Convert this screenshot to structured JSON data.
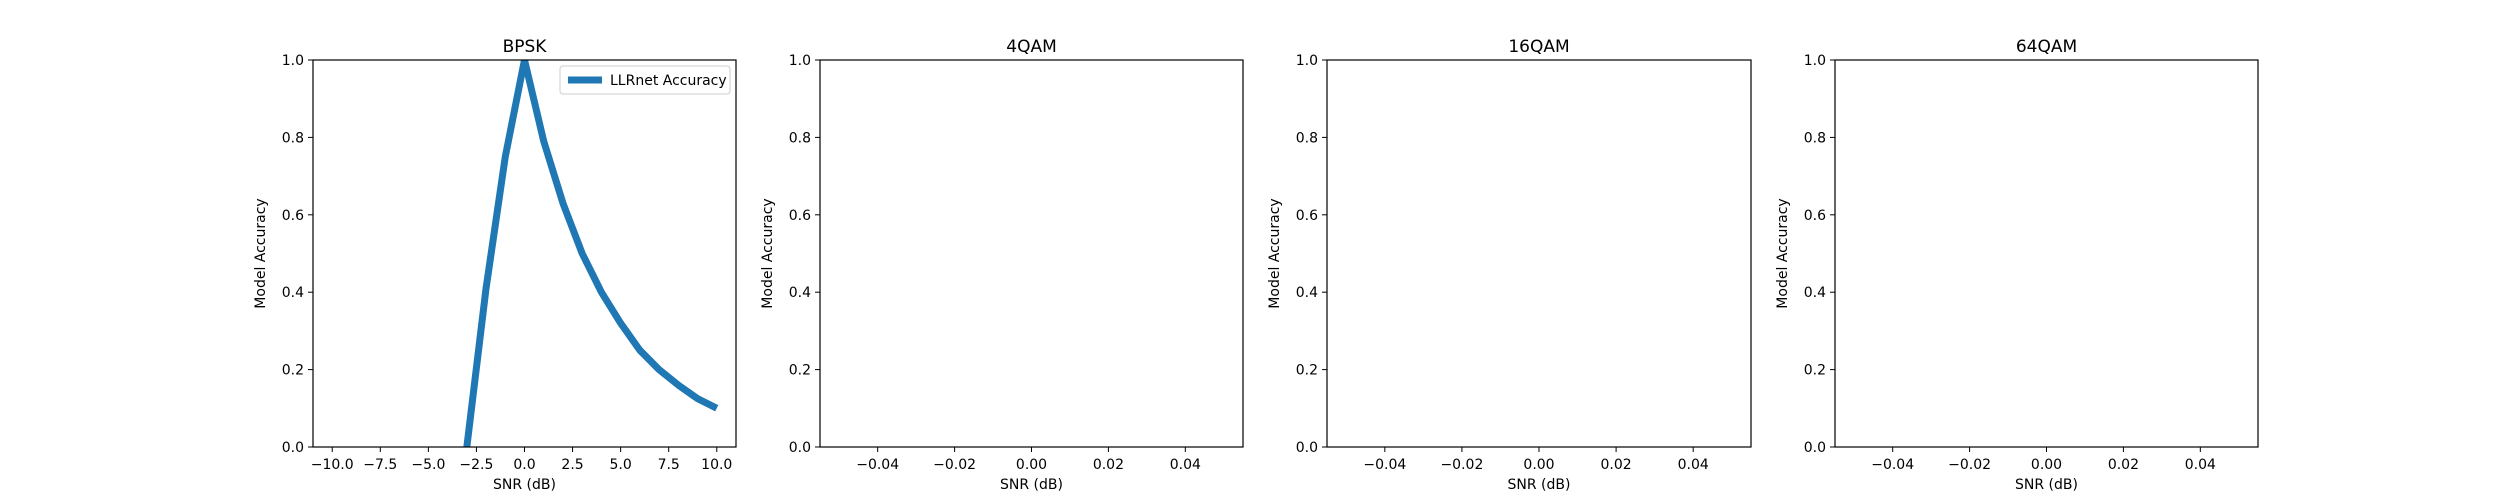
{
  "chart_data": [
    {
      "type": "line",
      "title": "BPSK",
      "xlabel": "SNR (dB)",
      "ylabel": "Model Accuracy",
      "xlim": [
        -11,
        11
      ],
      "ylim": [
        0,
        1
      ],
      "xticks": [
        -10,
        -7.5,
        -5,
        -2.5,
        0,
        2.5,
        5,
        7.5,
        10
      ],
      "xtick_labels": [
        "−10.0",
        "−7.5",
        "−5.0",
        "−2.5",
        "0.0",
        "2.5",
        "5.0",
        "7.5",
        "10.0"
      ],
      "yticks": [
        0,
        0.2,
        0.4,
        0.6,
        0.8,
        1.0
      ],
      "ytick_labels": [
        "0.0",
        "0.2",
        "0.4",
        "0.6",
        "0.8",
        "1.0"
      ],
      "legend": "top-right",
      "series": [
        {
          "name": "LLRnet Accuracy",
          "color": "#1f77b4",
          "x": [
            -3,
            -2,
            -1,
            0,
            1,
            2,
            3,
            4,
            5,
            6,
            7,
            8,
            9,
            10
          ],
          "y": [
            0.0,
            0.41,
            0.75,
            1.0,
            0.79,
            0.63,
            0.5,
            0.4,
            0.32,
            0.25,
            0.2,
            0.16,
            0.125,
            0.1
          ]
        }
      ]
    },
    {
      "type": "line",
      "title": "4QAM",
      "xlabel": "SNR (dB)",
      "ylabel": "Model Accuracy",
      "xlim": [
        -0.055,
        0.055
      ],
      "ylim": [
        0,
        1
      ],
      "xticks": [
        -0.04,
        -0.02,
        0,
        0.02,
        0.04
      ],
      "xtick_labels": [
        "−0.04",
        "−0.02",
        "0.00",
        "0.02",
        "0.04"
      ],
      "yticks": [
        0,
        0.2,
        0.4,
        0.6,
        0.8,
        1.0
      ],
      "ytick_labels": [
        "0.0",
        "0.2",
        "0.4",
        "0.6",
        "0.8",
        "1.0"
      ],
      "series": []
    },
    {
      "type": "line",
      "title": "16QAM",
      "xlabel": "SNR (dB)",
      "ylabel": "Model Accuracy",
      "xlim": [
        -0.055,
        0.055
      ],
      "ylim": [
        0,
        1
      ],
      "xticks": [
        -0.04,
        -0.02,
        0,
        0.02,
        0.04
      ],
      "xtick_labels": [
        "−0.04",
        "−0.02",
        "0.00",
        "0.02",
        "0.04"
      ],
      "yticks": [
        0,
        0.2,
        0.4,
        0.6,
        0.8,
        1.0
      ],
      "ytick_labels": [
        "0.0",
        "0.2",
        "0.4",
        "0.6",
        "0.8",
        "1.0"
      ],
      "series": []
    },
    {
      "type": "line",
      "title": "64QAM",
      "xlabel": "SNR (dB)",
      "ylabel": "Model Accuracy",
      "xlim": [
        -0.055,
        0.055
      ],
      "ylim": [
        0,
        1
      ],
      "xticks": [
        -0.04,
        -0.02,
        0,
        0.02,
        0.04
      ],
      "xtick_labels": [
        "−0.04",
        "−0.02",
        "0.00",
        "0.02",
        "0.04"
      ],
      "yticks": [
        0,
        0.2,
        0.4,
        0.6,
        0.8,
        1.0
      ],
      "ytick_labels": [
        "0.0",
        "0.2",
        "0.4",
        "0.6",
        "0.8",
        "1.0"
      ],
      "series": []
    }
  ]
}
